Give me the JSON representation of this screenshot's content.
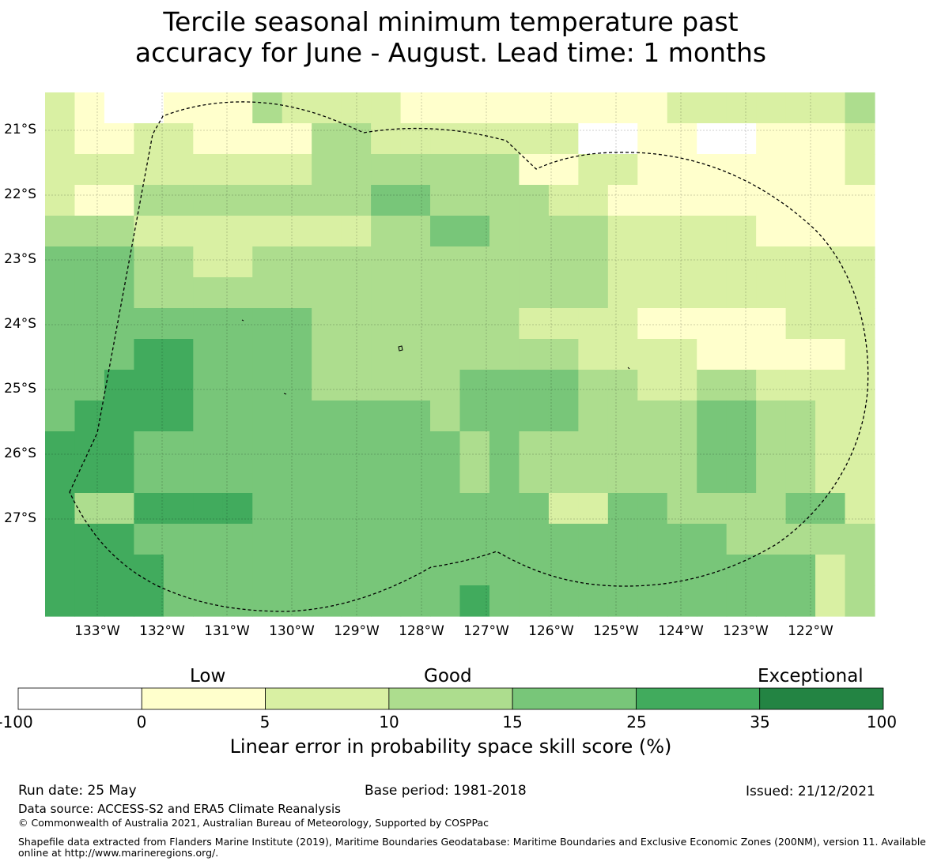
{
  "title": {
    "line1": "Tercile seasonal minimum temperature past",
    "line2": "accuracy for June - August. Lead time: 1 months"
  },
  "map": {
    "lat_labels": [
      "21°S",
      "22°S",
      "23°S",
      "24°S",
      "25°S",
      "26°S",
      "27°S"
    ],
    "lon_labels": [
      "133°W",
      "132°W",
      "131°W",
      "130°W",
      "129°W",
      "128°W",
      "127°W",
      "126°W",
      "125°W",
      "124°W",
      "123°W",
      "122°W"
    ],
    "bin_colors": [
      "#ffffff",
      "#ffffcc",
      "#d9f0a3",
      "#addd8e",
      "#78c679",
      "#41ab5d",
      "#238443"
    ],
    "grid_bins": [
      [
        2,
        1,
        0,
        0,
        1,
        1,
        1,
        3,
        2,
        2,
        2,
        2,
        1,
        1,
        1,
        1,
        1,
        1,
        1,
        1,
        1,
        2,
        2,
        2,
        2,
        2,
        2,
        3
      ],
      [
        2,
        1,
        1,
        2,
        2,
        1,
        1,
        1,
        1,
        3,
        3,
        2,
        2,
        2,
        2,
        2,
        2,
        2,
        0,
        0,
        1,
        1,
        0,
        0,
        1,
        1,
        1,
        2
      ],
      [
        2,
        2,
        2,
        2,
        2,
        2,
        2,
        2,
        2,
        3,
        3,
        3,
        3,
        3,
        3,
        3,
        1,
        1,
        2,
        2,
        1,
        1,
        1,
        1,
        1,
        1,
        1,
        2
      ],
      [
        2,
        1,
        1,
        3,
        3,
        3,
        3,
        3,
        3,
        3,
        3,
        4,
        4,
        3,
        3,
        3,
        3,
        2,
        2,
        1,
        1,
        1,
        1,
        1,
        1,
        1,
        1,
        1
      ],
      [
        3,
        3,
        3,
        2,
        2,
        2,
        2,
        2,
        2,
        2,
        2,
        3,
        3,
        4,
        4,
        3,
        3,
        3,
        3,
        2,
        2,
        2,
        2,
        2,
        1,
        1,
        1,
        1
      ],
      [
        4,
        4,
        4,
        3,
        3,
        2,
        2,
        3,
        3,
        3,
        3,
        3,
        3,
        3,
        3,
        3,
        3,
        3,
        3,
        2,
        2,
        2,
        2,
        2,
        2,
        2,
        2,
        2
      ],
      [
        4,
        4,
        4,
        3,
        3,
        3,
        3,
        3,
        3,
        3,
        3,
        3,
        3,
        3,
        3,
        3,
        3,
        3,
        3,
        2,
        2,
        2,
        2,
        2,
        2,
        2,
        2,
        2
      ],
      [
        4,
        4,
        4,
        4,
        4,
        4,
        4,
        4,
        4,
        3,
        3,
        3,
        3,
        3,
        3,
        3,
        2,
        2,
        2,
        2,
        1,
        1,
        1,
        1,
        1,
        2,
        2,
        2
      ],
      [
        4,
        4,
        4,
        5,
        5,
        4,
        4,
        4,
        4,
        3,
        3,
        3,
        3,
        3,
        3,
        3,
        3,
        3,
        2,
        2,
        2,
        2,
        1,
        1,
        1,
        1,
        1,
        2
      ],
      [
        4,
        4,
        5,
        5,
        5,
        4,
        4,
        4,
        4,
        3,
        3,
        3,
        3,
        3,
        4,
        4,
        4,
        4,
        3,
        3,
        2,
        2,
        3,
        3,
        2,
        2,
        2,
        2
      ],
      [
        4,
        5,
        5,
        5,
        5,
        4,
        4,
        4,
        4,
        4,
        4,
        4,
        4,
        3,
        4,
        4,
        4,
        4,
        3,
        3,
        3,
        3,
        4,
        4,
        3,
        3,
        2,
        2
      ],
      [
        5,
        5,
        5,
        4,
        4,
        4,
        4,
        4,
        4,
        4,
        4,
        4,
        4,
        4,
        3,
        4,
        3,
        3,
        3,
        3,
        3,
        3,
        4,
        4,
        3,
        3,
        2,
        2
      ],
      [
        5,
        5,
        5,
        4,
        4,
        4,
        4,
        4,
        4,
        4,
        4,
        4,
        4,
        4,
        3,
        4,
        3,
        3,
        3,
        3,
        3,
        3,
        4,
        4,
        3,
        3,
        2,
        2
      ],
      [
        5,
        3,
        3,
        5,
        5,
        5,
        5,
        4,
        4,
        4,
        4,
        4,
        4,
        4,
        4,
        4,
        4,
        2,
        2,
        4,
        4,
        3,
        3,
        3,
        3,
        4,
        4,
        2
      ],
      [
        5,
        5,
        5,
        4,
        4,
        4,
        4,
        4,
        4,
        4,
        4,
        4,
        4,
        4,
        4,
        4,
        4,
        4,
        4,
        4,
        4,
        4,
        4,
        3,
        3,
        3,
        3,
        3
      ],
      [
        5,
        5,
        5,
        5,
        4,
        4,
        4,
        4,
        4,
        4,
        4,
        4,
        4,
        4,
        4,
        4,
        4,
        4,
        4,
        4,
        4,
        4,
        4,
        4,
        4,
        4,
        2,
        3
      ],
      [
        5,
        5,
        5,
        5,
        4,
        4,
        4,
        4,
        4,
        4,
        4,
        4,
        4,
        4,
        5,
        4,
        4,
        4,
        4,
        4,
        4,
        4,
        4,
        4,
        4,
        4,
        2,
        3
      ]
    ]
  },
  "colorbar": {
    "ticks": [
      "-100",
      "0",
      "5",
      "10",
      "15",
      "25",
      "35",
      "100"
    ],
    "categories": [
      "Low",
      "Good",
      "Exceptional"
    ],
    "label": "Linear error in probability space skill score (%)"
  },
  "footer": {
    "run_date": "Run date: 25 May",
    "base_period": "Base period: 1981-2018",
    "issued": "Issued: 21/12/2021",
    "data_source": "Data source: ACCESS-S2 and ERA5 Climate Reanalysis",
    "copyright": "© Commonwealth of Australia 2021, Australian Bureau of Meteorology, Supported by COSPPac",
    "shapefile_line1": "Shapefile data extracted from Flanders Marine Institute (2019), Maritime Boundaries Geodatabase: Maritime Boundaries and Exclusive Economic Zones (200NM), version 11. Available",
    "shapefile_line2": "online at http://www.marineregions.org/."
  }
}
